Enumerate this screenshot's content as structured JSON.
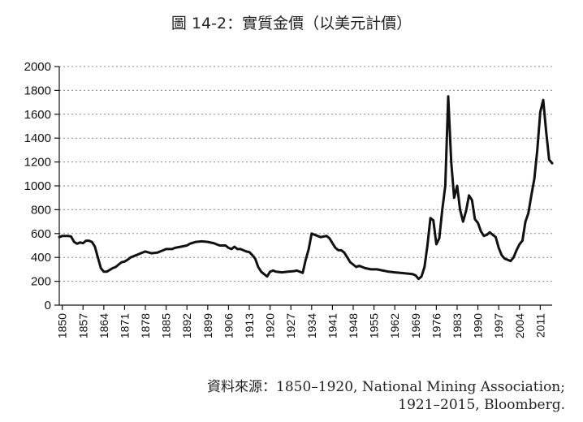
{
  "title": "圖 14-2：實質金價（以美元計價）",
  "source": {
    "line1": "資料來源：1850–1920, National Mining Association;",
    "line2": "1921–2015, Bloomberg."
  },
  "chart_data": {
    "type": "line",
    "title": "圖 14-2：實質金價（以美元計價）",
    "xlabel": "",
    "ylabel": "",
    "xlim": [
      1849,
      2015
    ],
    "ylim": [
      0,
      2000
    ],
    "y_ticks": [
      0,
      200,
      400,
      600,
      800,
      1000,
      1200,
      1400,
      1600,
      1800,
      2000
    ],
    "x_ticks": [
      1850,
      1857,
      1864,
      1871,
      1878,
      1885,
      1892,
      1899,
      1906,
      1913,
      1920,
      1927,
      1934,
      1941,
      1948,
      1955,
      1962,
      1969,
      1976,
      1983,
      1990,
      1997,
      2004,
      2011
    ],
    "grid": "horizontal-dotted",
    "series": [
      {
        "color": "#111111",
        "x": [
          1849,
          1850,
          1852,
          1853,
          1854,
          1855,
          1856,
          1857,
          1858,
          1859,
          1860,
          1861,
          1862,
          1863,
          1864,
          1865,
          1866,
          1867,
          1868,
          1869,
          1870,
          1871,
          1872,
          1873,
          1875,
          1877,
          1878,
          1880,
          1882,
          1884,
          1885,
          1887,
          1888,
          1890,
          1892,
          1893,
          1895,
          1897,
          1899,
          1901,
          1903,
          1905,
          1906,
          1907,
          1908,
          1909,
          1910,
          1911,
          1912,
          1913,
          1914,
          1915,
          1916,
          1917,
          1918,
          1919,
          1920,
          1921,
          1922,
          1924,
          1926,
          1928,
          1929,
          1930,
          1931,
          1932,
          1933,
          1934,
          1935,
          1936,
          1937,
          1938,
          1939,
          1940,
          1941,
          1942,
          1943,
          1944,
          1945,
          1946,
          1947,
          1948,
          1949,
          1950,
          1952,
          1954,
          1956,
          1958,
          1960,
          1962,
          1964,
          1966,
          1968,
          1969,
          1970,
          1971,
          1972,
          1973,
          1974,
          1975,
          1976,
          1977,
          1978,
          1979,
          1980,
          1981,
          1982,
          1983,
          1984,
          1985,
          1986,
          1987,
          1988,
          1989,
          1990,
          1991,
          1992,
          1993,
          1994,
          1995,
          1996,
          1997,
          1998,
          1999,
          2000,
          2001,
          2002,
          2003,
          2004,
          2005,
          2006,
          2007,
          2008,
          2009,
          2010,
          2011,
          2012,
          2013,
          2014,
          2015
        ],
        "y": [
          570,
          580,
          580,
          575,
          530,
          515,
          525,
          520,
          540,
          540,
          530,
          490,
          400,
          310,
          280,
          280,
          295,
          310,
          320,
          340,
          360,
          365,
          380,
          400,
          420,
          440,
          450,
          435,
          440,
          460,
          470,
          470,
          480,
          490,
          500,
          515,
          530,
          535,
          530,
          520,
          500,
          500,
          480,
          470,
          490,
          470,
          470,
          460,
          450,
          445,
          420,
          390,
          320,
          280,
          260,
          240,
          280,
          290,
          280,
          275,
          280,
          285,
          290,
          280,
          270,
          380,
          470,
          600,
          590,
          580,
          570,
          575,
          580,
          560,
          520,
          480,
          460,
          460,
          440,
          400,
          360,
          340,
          320,
          330,
          310,
          300,
          300,
          290,
          280,
          275,
          270,
          265,
          260,
          250,
          220,
          240,
          320,
          500,
          730,
          710,
          510,
          560,
          800,
          1000,
          1750,
          1200,
          900,
          1000,
          800,
          700,
          790,
          920,
          880,
          720,
          690,
          620,
          580,
          590,
          610,
          590,
          570,
          480,
          420,
          390,
          380,
          370,
          400,
          460,
          510,
          540,
          700,
          770,
          920,
          1060,
          1300,
          1620,
          1720,
          1450,
          1220,
          1190
        ]
      }
    ]
  }
}
